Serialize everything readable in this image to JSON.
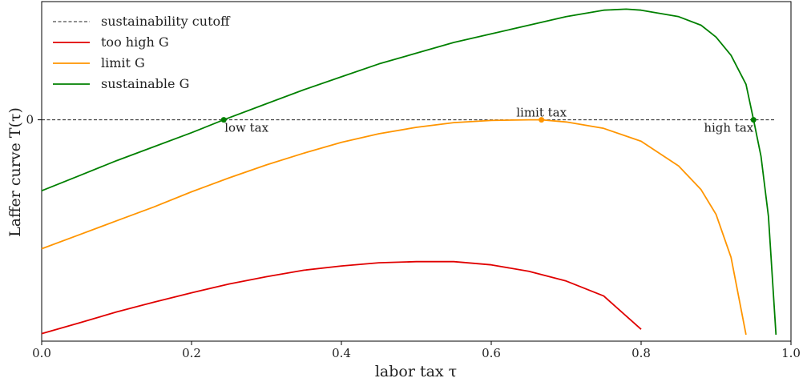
{
  "chart_data": {
    "type": "line",
    "title": "",
    "xlabel": "labor tax τ",
    "ylabel": "Laffer curve T(τ)",
    "xlim": [
      0.0,
      1.0
    ],
    "ylim": [
      -1.03,
      0.55
    ],
    "x_ticks": [
      "0.0",
      "0.2",
      "0.4",
      "0.6",
      "0.8",
      "1.0"
    ],
    "y_ticks": [
      "0"
    ],
    "grid": false,
    "legend_position": "top-left",
    "legend": [
      {
        "label": "sustainability cutoff",
        "style": "dashed",
        "color": "#222222"
      },
      {
        "label": "too high G",
        "color": "#e00000"
      },
      {
        "label": "limit G",
        "color": "#ff9500"
      },
      {
        "label": "sustainable G",
        "color": "#008000"
      }
    ],
    "cutoff": {
      "y": 0,
      "x_range": [
        0.0,
        0.98
      ]
    },
    "series": [
      {
        "name": "too high G",
        "color": "#e00000",
        "x": [
          0.0,
          0.05,
          0.1,
          0.15,
          0.2,
          0.25,
          0.3,
          0.35,
          0.4,
          0.45,
          0.5,
          0.55,
          0.6,
          0.65,
          0.7,
          0.75,
          0.8
        ],
        "y": [
          -0.995,
          -0.945,
          -0.894,
          -0.848,
          -0.805,
          -0.764,
          -0.73,
          -0.7,
          -0.68,
          -0.665,
          -0.66,
          -0.66,
          -0.675,
          -0.705,
          -0.75,
          -0.82,
          -0.975
        ]
      },
      {
        "name": "limit G",
        "color": "#ff9500",
        "x": [
          0.0,
          0.05,
          0.1,
          0.15,
          0.2,
          0.25,
          0.3,
          0.35,
          0.4,
          0.45,
          0.5,
          0.55,
          0.6,
          0.65,
          0.667,
          0.7,
          0.75,
          0.8,
          0.85,
          0.88,
          0.9,
          0.92,
          0.94
        ],
        "y": [
          -0.6,
          -0.535,
          -0.47,
          -0.405,
          -0.335,
          -0.27,
          -0.21,
          -0.155,
          -0.105,
          -0.065,
          -0.035,
          -0.013,
          -0.003,
          0.0,
          0.0,
          -0.01,
          -0.04,
          -0.1,
          -0.215,
          -0.325,
          -0.44,
          -0.64,
          -1.0
        ]
      },
      {
        "name": "sustainable G",
        "color": "#008000",
        "x": [
          0.0,
          0.05,
          0.1,
          0.15,
          0.2,
          0.243,
          0.3,
          0.35,
          0.4,
          0.45,
          0.5,
          0.55,
          0.6,
          0.65,
          0.7,
          0.75,
          0.78,
          0.8,
          0.85,
          0.88,
          0.9,
          0.92,
          0.94,
          0.95,
          0.96,
          0.97,
          0.98
        ],
        "y": [
          -0.33,
          -0.26,
          -0.19,
          -0.125,
          -0.06,
          0.0,
          0.075,
          0.14,
          0.2,
          0.26,
          0.31,
          0.36,
          0.4,
          0.44,
          0.48,
          0.51,
          0.515,
          0.51,
          0.48,
          0.44,
          0.385,
          0.3,
          0.165,
          0.0,
          -0.17,
          -0.45,
          -1.0
        ]
      }
    ],
    "points": [
      {
        "x": 0.243,
        "y": 0.0,
        "color": "#008000"
      },
      {
        "x": 0.667,
        "y": 0.0,
        "color": "#ff9500"
      },
      {
        "x": 0.95,
        "y": 0.0,
        "color": "#008000"
      }
    ],
    "annotations": [
      {
        "text": "low tax",
        "x": 0.243,
        "y": 0.0
      },
      {
        "text": "limit tax",
        "x": 0.667,
        "y": 0.0
      },
      {
        "text": "high tax",
        "x": 0.95,
        "y": 0.0
      }
    ]
  }
}
